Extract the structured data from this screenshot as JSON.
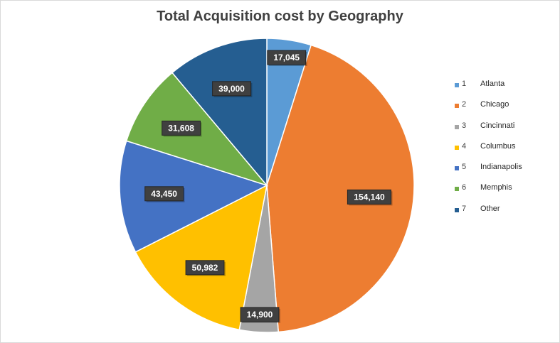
{
  "chart_data": {
    "type": "pie",
    "title": "Total Acquisition cost by Geography",
    "start_angle_deg": 0,
    "direction": "clockwise",
    "legend_position": "right",
    "slices": [
      {
        "number": "1",
        "name": "Atlanta",
        "value": 17045,
        "label": "17,045",
        "color": "#5b9bd5"
      },
      {
        "number": "2",
        "name": "Chicago",
        "value": 154140,
        "label": "154,140",
        "color": "#ed7d31"
      },
      {
        "number": "3",
        "name": "Cincinnati",
        "value": 14900,
        "label": "14,900",
        "color": "#a5a5a5"
      },
      {
        "number": "4",
        "name": "Columbus",
        "value": 50982,
        "label": "50,982",
        "color": "#ffc000"
      },
      {
        "number": "5",
        "name": "Indianapolis",
        "value": 43450,
        "label": "43,450",
        "color": "#4472c4"
      },
      {
        "number": "6",
        "name": "Memphis",
        "value": 31608,
        "label": "31,608",
        "color": "#70ad47"
      },
      {
        "number": "7",
        "name": "Other",
        "value": 39000,
        "label": "39,000",
        "color": "#255e91"
      }
    ]
  }
}
